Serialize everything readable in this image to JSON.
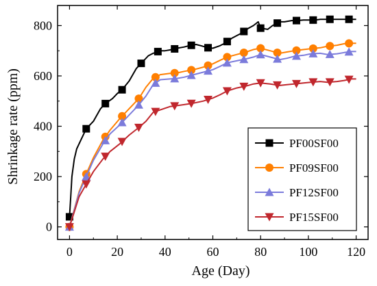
{
  "chart_data": {
    "type": "line",
    "xlabel": "Age (Day)",
    "ylabel": "Shrinkage rate (ppm)",
    "xlim": [
      -5,
      125
    ],
    "ylim": [
      -50,
      880
    ],
    "xticks": [
      0,
      20,
      40,
      60,
      80,
      100,
      120
    ],
    "yticks": [
      0,
      200,
      400,
      600,
      800
    ],
    "xtick_labels": [
      "0",
      "20",
      "40",
      "60",
      "80",
      "100",
      "120"
    ],
    "ytick_labels": [
      "0",
      "200",
      "400",
      "600",
      "800"
    ],
    "grid": false,
    "legend_position": "bottom-right",
    "series": [
      {
        "name": "PF00SF00",
        "color": "#000000",
        "marker": "square",
        "x": [
          0,
          0.5,
          1,
          2,
          3,
          5,
          7,
          10,
          13,
          15,
          18,
          20,
          22,
          25,
          28,
          30,
          33,
          35,
          38,
          40,
          43,
          45,
          48,
          50,
          53,
          55,
          58,
          60,
          63,
          65,
          68,
          70,
          72,
          75,
          77,
          79,
          80,
          83,
          85,
          88,
          90,
          93,
          95,
          98,
          100,
          103,
          105,
          108,
          110,
          113,
          115,
          118,
          120
        ],
        "y": [
          40,
          120,
          200,
          270,
          310,
          350,
          390,
          420,
          470,
          490,
          510,
          530,
          545,
          580,
          630,
          650,
          680,
          690,
          700,
          700,
          705,
          710,
          715,
          720,
          725,
          720,
          712,
          710,
          720,
          730,
          750,
          760,
          770,
          790,
          800,
          815,
          790,
          785,
          800,
          815,
          815,
          820,
          820,
          822,
          822,
          822,
          825,
          825,
          825,
          825,
          825,
          825,
          825
        ]
      },
      {
        "name": "PF09SF00",
        "color": "#ff7f00",
        "marker": "circle",
        "x": [
          0,
          4,
          7,
          10,
          14,
          17,
          21,
          25,
          29,
          32,
          35,
          38,
          42,
          45,
          48,
          52,
          56,
          60,
          63,
          66,
          70,
          74,
          77,
          80,
          84,
          88,
          91,
          94,
          98,
          101,
          105,
          108,
          112,
          115,
          118,
          120
        ],
        "y": [
          0,
          140,
          210,
          275,
          345,
          385,
          430,
          470,
          510,
          555,
          590,
          605,
          610,
          612,
          618,
          625,
          635,
          648,
          662,
          675,
          685,
          695,
          705,
          710,
          700,
          690,
          695,
          700,
          705,
          708,
          712,
          718,
          722,
          728,
          730,
          730
        ]
      },
      {
        "name": "PF12SF00",
        "color": "#7b7bdb",
        "marker": "triangle-up",
        "x": [
          0,
          4,
          7,
          10,
          14,
          17,
          21,
          25,
          29,
          32,
          35,
          38,
          42,
          45,
          48,
          52,
          56,
          60,
          63,
          66,
          70,
          74,
          77,
          80,
          84,
          88,
          91,
          94,
          98,
          101,
          105,
          108,
          112,
          115,
          118,
          120
        ],
        "y": [
          0,
          135,
          200,
          265,
          330,
          370,
          405,
          445,
          485,
          520,
          565,
          585,
          588,
          590,
          595,
          605,
          615,
          625,
          638,
          652,
          660,
          668,
          675,
          685,
          675,
          665,
          670,
          678,
          682,
          688,
          690,
          685,
          688,
          693,
          697,
          697
        ]
      },
      {
        "name": "PF15SF00",
        "color": "#c0272d",
        "marker": "triangle-down",
        "x": [
          0,
          4,
          7,
          10,
          14,
          17,
          21,
          25,
          29,
          32,
          35,
          38,
          42,
          45,
          48,
          52,
          56,
          60,
          63,
          66,
          70,
          74,
          77,
          80,
          84,
          88,
          91,
          94,
          98,
          101,
          105,
          108,
          112,
          115,
          118,
          120
        ],
        "y": [
          0,
          120,
          170,
          220,
          270,
          300,
          330,
          365,
          395,
          420,
          455,
          465,
          478,
          482,
          486,
          492,
          500,
          512,
          525,
          540,
          552,
          560,
          568,
          572,
          568,
          562,
          565,
          568,
          572,
          575,
          578,
          575,
          578,
          582,
          588,
          588
        ]
      }
    ]
  }
}
